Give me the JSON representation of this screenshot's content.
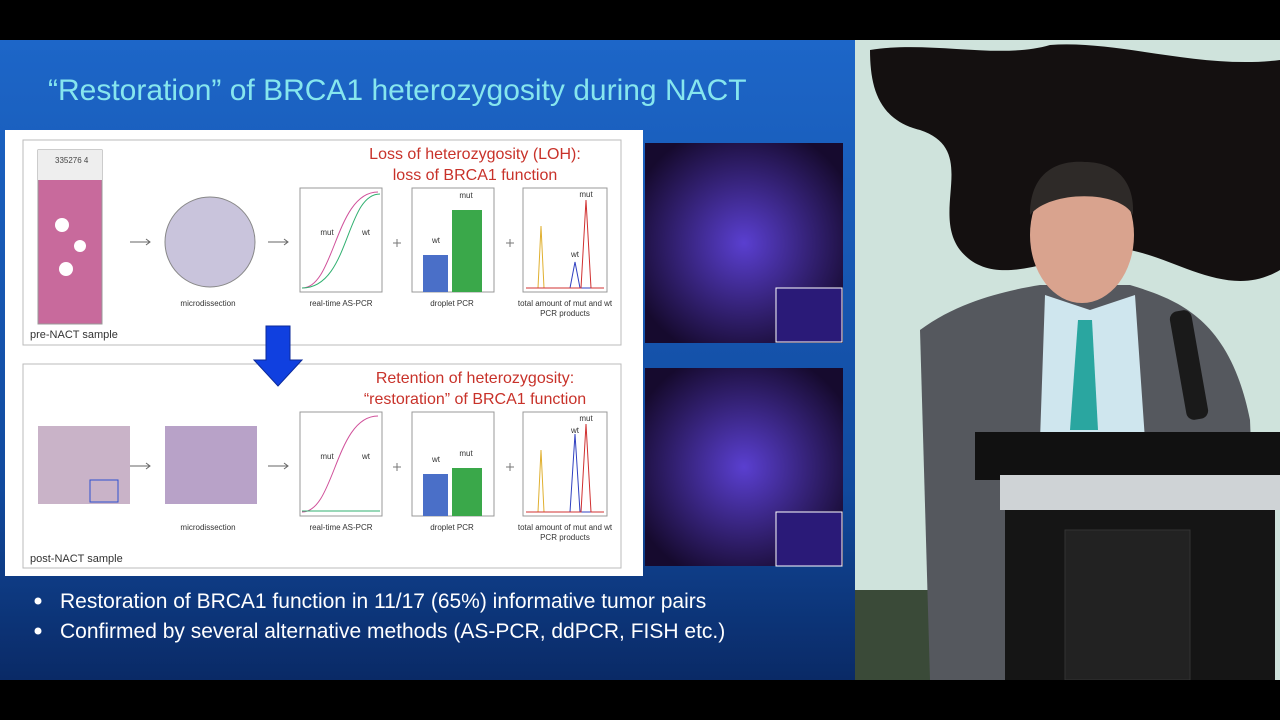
{
  "slide": {
    "title": "“Restoration” of BRCA1 heterozygosity during NACT",
    "panels": [
      {
        "heading": [
          "Loss of heterozygosity (LOH):",
          "loss of BRCA1 function"
        ],
        "sample_label": "pre-NACT sample",
        "slide_number": "335276  4",
        "steps": [
          "microdissection",
          "real-time AS-PCR",
          "droplet PCR",
          "total amount of mut and wt",
          "PCR products"
        ],
        "pcr_labels": [
          "mut",
          "wt"
        ],
        "droplet_labels": [
          "wt",
          "mut"
        ],
        "peak_labels": [
          "mut",
          "wt"
        ]
      },
      {
        "heading": [
          "Retention of heterozygosity:",
          "“restoration” of BRCA1 function"
        ],
        "sample_label": "post-NACT sample",
        "steps": [
          "microdissection",
          "real-time AS-PCR",
          "droplet PCR",
          "total amount of mut and wt",
          "PCR products"
        ],
        "pcr_labels": [
          "mut",
          "wt"
        ],
        "droplet_labels": [
          "wt",
          "mut"
        ],
        "peak_labels": [
          "mut",
          "wt"
        ]
      }
    ],
    "bullets": [
      "Restoration of BRCA1 function in 11/17 (65%) informative tumor pairs",
      "Confirmed by several alternative methods (AS-PCR, ddPCR, FISH etc.)"
    ]
  }
}
